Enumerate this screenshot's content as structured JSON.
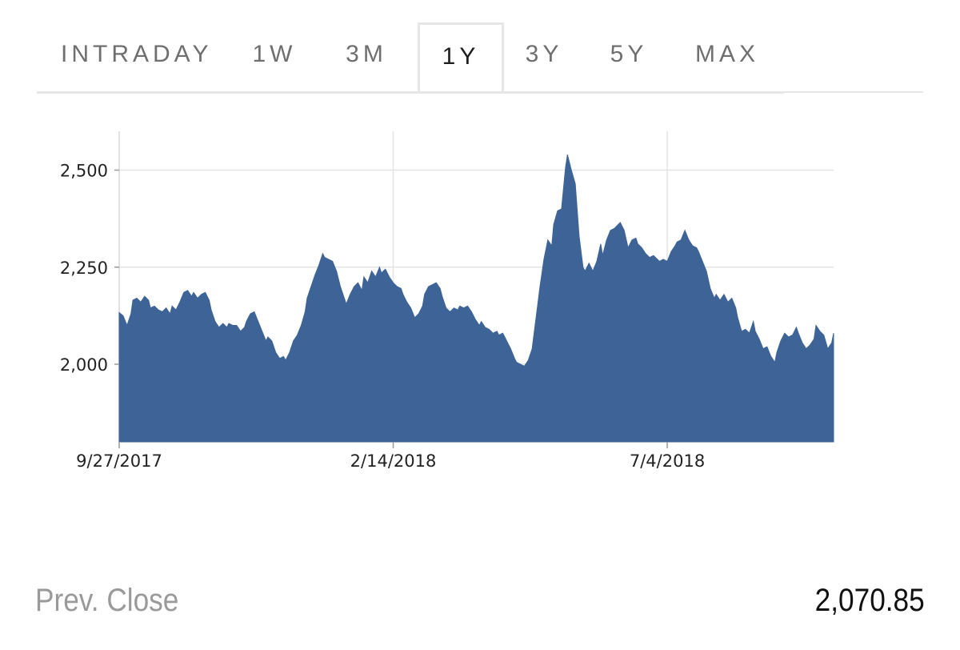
{
  "tabs": [
    {
      "label": "INTRADAY",
      "active": false
    },
    {
      "label": "1W",
      "active": false
    },
    {
      "label": "3M",
      "active": false
    },
    {
      "label": "1Y",
      "active": true
    },
    {
      "label": "3Y",
      "active": false
    },
    {
      "label": "5Y",
      "active": false
    },
    {
      "label": "MAX",
      "active": false
    }
  ],
  "colors": {
    "area_fill": "#3e6497",
    "grid": "#e4e4e4",
    "axis_text": "#222222"
  },
  "footer": {
    "prev_close_label": "Prev. Close",
    "prev_close_value": "2,070.85"
  },
  "chart_data": {
    "type": "area",
    "title": "",
    "xlabel": "",
    "ylabel": "",
    "x_start": "9/27/2017",
    "x_end": "9/27/2018",
    "x_ticks": [
      "9/27/2017",
      "2/14/2018",
      "7/4/2018"
    ],
    "y_ticks": [
      2000,
      2250,
      2500
    ],
    "y_tick_labels": [
      "2,000",
      "2,250",
      "2,500"
    ],
    "ylim": [
      1800,
      2600
    ],
    "grid": true,
    "series": [
      {
        "values": [
          [
            0,
            2133
          ],
          [
            2,
            2125
          ],
          [
            4,
            2100
          ],
          [
            6,
            2130
          ],
          [
            7,
            2165
          ],
          [
            9,
            2170
          ],
          [
            11,
            2160
          ],
          [
            13,
            2175
          ],
          [
            15,
            2165
          ],
          [
            16,
            2145
          ],
          [
            18,
            2150
          ],
          [
            20,
            2140
          ],
          [
            22,
            2135
          ],
          [
            24,
            2145
          ],
          [
            26,
            2130
          ],
          [
            27,
            2150
          ],
          [
            29,
            2140
          ],
          [
            31,
            2160
          ],
          [
            33,
            2185
          ],
          [
            35,
            2190
          ],
          [
            37,
            2175
          ],
          [
            38,
            2185
          ],
          [
            40,
            2170
          ],
          [
            42,
            2180
          ],
          [
            44,
            2185
          ],
          [
            46,
            2165
          ],
          [
            47,
            2140
          ],
          [
            49,
            2110
          ],
          [
            51,
            2095
          ],
          [
            53,
            2105
          ],
          [
            55,
            2095
          ],
          [
            56,
            2105
          ],
          [
            58,
            2100
          ],
          [
            60,
            2100
          ],
          [
            62,
            2085
          ],
          [
            64,
            2095
          ],
          [
            65,
            2110
          ],
          [
            67,
            2130
          ],
          [
            69,
            2135
          ],
          [
            71,
            2110
          ],
          [
            73,
            2085
          ],
          [
            75,
            2060
          ],
          [
            76,
            2070
          ],
          [
            78,
            2060
          ],
          [
            80,
            2030
          ],
          [
            82,
            2015
          ],
          [
            84,
            2020
          ],
          [
            85,
            2010
          ],
          [
            87,
            2030
          ],
          [
            89,
            2060
          ],
          [
            91,
            2075
          ],
          [
            93,
            2100
          ],
          [
            95,
            2135
          ],
          [
            96,
            2170
          ],
          [
            98,
            2200
          ],
          [
            100,
            2230
          ],
          [
            102,
            2255
          ],
          [
            104,
            2285
          ],
          [
            105,
            2275
          ],
          [
            107,
            2270
          ],
          [
            109,
            2265
          ],
          [
            111,
            2240
          ],
          [
            113,
            2200
          ],
          [
            115,
            2170
          ],
          [
            116,
            2155
          ],
          [
            118,
            2180
          ],
          [
            120,
            2200
          ],
          [
            122,
            2210
          ],
          [
            124,
            2190
          ],
          [
            125,
            2225
          ],
          [
            127,
            2210
          ],
          [
            129,
            2240
          ],
          [
            131,
            2225
          ],
          [
            133,
            2250
          ],
          [
            134,
            2235
          ],
          [
            136,
            2245
          ],
          [
            138,
            2225
          ],
          [
            140,
            2210
          ],
          [
            142,
            2200
          ],
          [
            144,
            2195
          ],
          [
            145,
            2180
          ],
          [
            147,
            2160
          ],
          [
            149,
            2145
          ],
          [
            151,
            2120
          ],
          [
            153,
            2130
          ],
          [
            155,
            2150
          ],
          [
            156,
            2180
          ],
          [
            158,
            2200
          ],
          [
            160,
            2205
          ],
          [
            162,
            2210
          ],
          [
            164,
            2195
          ],
          [
            165,
            2175
          ],
          [
            167,
            2145
          ],
          [
            169,
            2135
          ],
          [
            171,
            2145
          ],
          [
            173,
            2140
          ],
          [
            174,
            2150
          ],
          [
            176,
            2145
          ],
          [
            178,
            2150
          ],
          [
            180,
            2135
          ],
          [
            182,
            2115
          ],
          [
            184,
            2100
          ],
          [
            185,
            2110
          ],
          [
            187,
            2095
          ],
          [
            189,
            2090
          ],
          [
            191,
            2080
          ],
          [
            193,
            2085
          ],
          [
            194,
            2075
          ],
          [
            196,
            2080
          ],
          [
            198,
            2060
          ],
          [
            200,
            2040
          ],
          [
            202,
            2015
          ],
          [
            203,
            2005
          ],
          [
            205,
            2000
          ],
          [
            207,
            1995
          ],
          [
            209,
            2010
          ],
          [
            211,
            2040
          ],
          [
            213,
            2120
          ],
          [
            215,
            2200
          ],
          [
            217,
            2270
          ],
          [
            219,
            2320
          ],
          [
            221,
            2305
          ],
          [
            222,
            2360
          ],
          [
            224,
            2395
          ],
          [
            226,
            2400
          ],
          [
            228,
            2505
          ],
          [
            229,
            2540
          ],
          [
            231,
            2500
          ],
          [
            233,
            2465
          ],
          [
            235,
            2330
          ],
          [
            237,
            2250
          ],
          [
            238,
            2240
          ],
          [
            240,
            2260
          ],
          [
            242,
            2240
          ],
          [
            244,
            2265
          ],
          [
            246,
            2310
          ],
          [
            247,
            2280
          ],
          [
            249,
            2320
          ],
          [
            251,
            2345
          ],
          [
            253,
            2350
          ],
          [
            255,
            2360
          ],
          [
            256,
            2365
          ],
          [
            258,
            2345
          ],
          [
            260,
            2300
          ],
          [
            262,
            2320
          ],
          [
            264,
            2325
          ],
          [
            265,
            2310
          ],
          [
            267,
            2300
          ],
          [
            269,
            2285
          ],
          [
            271,
            2275
          ],
          [
            273,
            2280
          ],
          [
            275,
            2270
          ],
          [
            276,
            2265
          ],
          [
            278,
            2270
          ],
          [
            280,
            2265
          ],
          [
            282,
            2290
          ],
          [
            284,
            2305
          ],
          [
            285,
            2315
          ],
          [
            287,
            2320
          ],
          [
            289,
            2345
          ],
          [
            291,
            2320
          ],
          [
            293,
            2305
          ],
          [
            295,
            2300
          ],
          [
            296,
            2290
          ],
          [
            298,
            2265
          ],
          [
            300,
            2240
          ],
          [
            302,
            2195
          ],
          [
            304,
            2170
          ],
          [
            305,
            2180
          ],
          [
            307,
            2165
          ],
          [
            309,
            2180
          ],
          [
            311,
            2160
          ],
          [
            313,
            2170
          ],
          [
            315,
            2145
          ],
          [
            316,
            2120
          ],
          [
            318,
            2085
          ],
          [
            320,
            2090
          ],
          [
            322,
            2080
          ],
          [
            324,
            2110
          ],
          [
            325,
            2085
          ],
          [
            327,
            2065
          ],
          [
            329,
            2040
          ],
          [
            331,
            2045
          ],
          [
            333,
            2020
          ],
          [
            335,
            2005
          ],
          [
            336,
            2030
          ],
          [
            338,
            2060
          ],
          [
            340,
            2080
          ],
          [
            342,
            2070
          ],
          [
            344,
            2075
          ],
          [
            346,
            2095
          ],
          [
            347,
            2080
          ],
          [
            349,
            2055
          ],
          [
            351,
            2040
          ],
          [
            353,
            2050
          ],
          [
            355,
            2065
          ],
          [
            356,
            2100
          ],
          [
            358,
            2085
          ],
          [
            360,
            2075
          ],
          [
            362,
            2040
          ],
          [
            364,
            2055
          ],
          [
            365,
            2080
          ]
        ]
      }
    ]
  }
}
